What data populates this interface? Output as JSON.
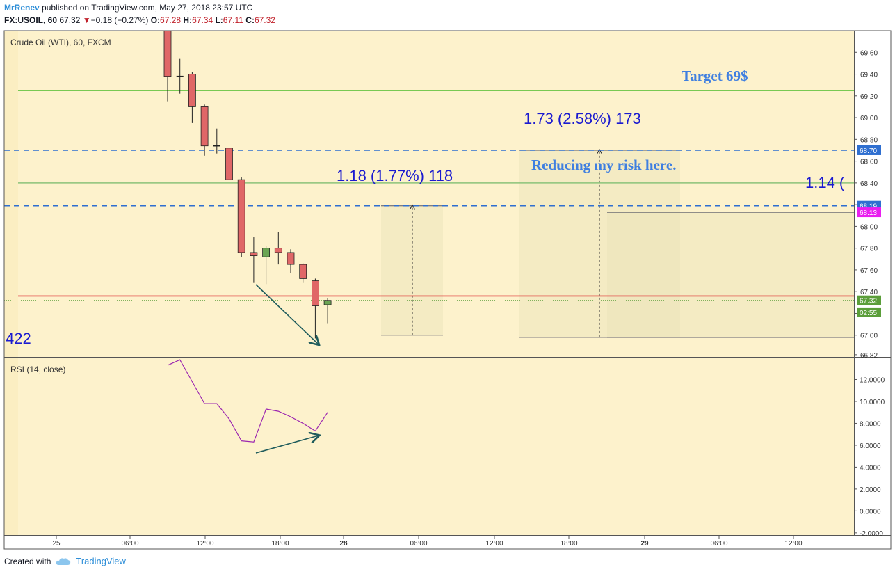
{
  "header": {
    "author": "MrRenev",
    "published": "published on TradingView.com, May 27, 2018 23:57 UTC",
    "symbol": "FX:USOIL, 60",
    "last": "67.32",
    "change_arrow": "triangle-down-icon",
    "change": "−0.18 (−0.27%)",
    "o_label": "O:",
    "o": "67.28",
    "h_label": "H:",
    "h": "67.34",
    "l_label": "L:",
    "l": "67.11",
    "c_label": "C:",
    "c": "67.32"
  },
  "footer": {
    "created_with": "Created with",
    "brand": "TradingView",
    "brand_icon": "tradingview-cloud-icon"
  },
  "colors": {
    "background": "#fdf2cc",
    "bull": "#6ba553",
    "bear": "#e06767",
    "wick": "#222222",
    "target_line": "#4cbb2a",
    "support_line": "#8bc37a",
    "red_line": "#e03c3c",
    "dashed_blue": "#2f6fd0",
    "rsi_line": "#9c27b0",
    "annotation_blue": "#1a1ad0",
    "note_blue": "#3f7fe0",
    "arrow": "#1f5c5c",
    "badge_blue": "#2f6fd0",
    "badge_magenta": "#e91ef0",
    "badge_green": "#5b9e3a"
  },
  "chart_data": [
    {
      "type": "candlestick",
      "title": "Crude Oil (WTI), 60, FXCM",
      "x_ticks": [
        "25",
        "06:00",
        "12:00",
        "18:00",
        "28",
        "06:00",
        "12:00",
        "18:00",
        "29",
        "06:00",
        "12:00"
      ],
      "y_ticks": [
        "69.60",
        "69.40",
        "69.20",
        "69.00",
        "68.80",
        "68.60",
        "68.40",
        "68.20",
        "68.00",
        "67.80",
        "67.60",
        "67.40",
        "67.20",
        "67.00",
        "66.82"
      ],
      "ylim": [
        66.8,
        69.8
      ],
      "candles": [
        {
          "i": 0,
          "o": 69.9,
          "h": 70.0,
          "l": 69.15,
          "c": 69.38
        },
        {
          "i": 1,
          "o": 69.38,
          "h": 69.54,
          "l": 69.22,
          "c": 69.38
        },
        {
          "i": 2,
          "o": 69.4,
          "h": 69.42,
          "l": 68.95,
          "c": 69.1
        },
        {
          "i": 3,
          "o": 69.1,
          "h": 69.12,
          "l": 68.65,
          "c": 68.74
        },
        {
          "i": 4,
          "o": 68.74,
          "h": 68.9,
          "l": 68.67,
          "c": 68.74
        },
        {
          "i": 5,
          "o": 68.72,
          "h": 68.78,
          "l": 68.25,
          "c": 68.43
        },
        {
          "i": 6,
          "o": 68.43,
          "h": 68.45,
          "l": 67.72,
          "c": 67.76
        },
        {
          "i": 7,
          "o": 67.76,
          "h": 67.9,
          "l": 67.48,
          "c": 67.73
        },
        {
          "i": 8,
          "o": 67.72,
          "h": 67.82,
          "l": 67.47,
          "c": 67.8
        },
        {
          "i": 9,
          "o": 67.8,
          "h": 67.95,
          "l": 67.65,
          "c": 67.76
        },
        {
          "i": 10,
          "o": 67.76,
          "h": 67.79,
          "l": 67.57,
          "c": 67.65
        },
        {
          "i": 11,
          "o": 67.65,
          "h": 67.66,
          "l": 67.48,
          "c": 67.52
        },
        {
          "i": 12,
          "o": 67.5,
          "h": 67.52,
          "l": 66.97,
          "c": 67.27
        },
        {
          "i": 13,
          "o": 67.28,
          "h": 67.34,
          "l": 67.11,
          "c": 67.32
        }
      ],
      "horizontal_lines": [
        {
          "price": 69.25,
          "style": "solid",
          "color": "#4cbb2a"
        },
        {
          "price": 68.7,
          "style": "dashed",
          "color": "#2f6fd0"
        },
        {
          "price": 68.4,
          "style": "solid",
          "color": "#8bc37a"
        },
        {
          "price": 68.19,
          "style": "dashed",
          "color": "#2f6fd0"
        },
        {
          "price": 67.36,
          "style": "solid",
          "color": "#e03c3c"
        },
        {
          "price": 67.32,
          "style": "dotted",
          "color": "#5b9e3a"
        }
      ],
      "price_badges": [
        {
          "price": 68.7,
          "label": "68.70",
          "color": "#2f6fd0"
        },
        {
          "price": 68.19,
          "label": "68.19",
          "color": "#2f6fd0"
        },
        {
          "price": 68.13,
          "label": "68.13",
          "color": "#e91ef0"
        },
        {
          "price": 67.32,
          "label": "67.32",
          "color": "#5b9e3a"
        },
        {
          "price": 67.21,
          "label": "02:55",
          "color": "#5b9e3a"
        }
      ],
      "annotations": {
        "target": "Target 69$",
        "range1": "1.18 (1.77%) 118",
        "range2": "1.73 (2.58%) 173",
        "range3": "1.14 (",
        "note": "Reducing my risk here.",
        "left_count": "422"
      },
      "ranges": [
        {
          "from": 67.0,
          "to": 68.19
        },
        {
          "from": 66.98,
          "to": 68.7
        },
        {
          "from": 66.98,
          "to": 68.13
        }
      ]
    },
    {
      "type": "line",
      "title": "RSI (14, close)",
      "y_ticks": [
        "12.0000",
        "10.0000",
        "8.0000",
        "6.0000",
        "4.0000",
        "2.0000",
        "0.0000",
        "-2.0000"
      ],
      "ylim": [
        -2.2,
        14
      ],
      "series": [
        {
          "values": [
            13.3,
            13.8,
            11.8,
            9.8,
            9.8,
            8.4,
            6.4,
            6.3,
            9.3,
            9.1,
            8.6,
            8.0,
            7.3,
            9.0
          ]
        }
      ]
    }
  ]
}
